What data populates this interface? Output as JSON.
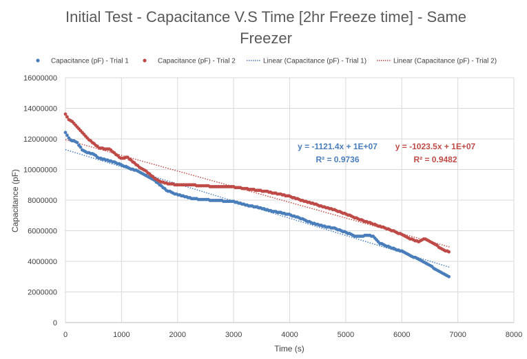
{
  "chart_data": {
    "type": "scatter",
    "title_line1": "Initial Test - Capacitance V.S Time [2hr Freeze time] - Same",
    "title_line2": "Freezer",
    "xlabel": "Time (s)",
    "ylabel": "Capacitance (pF)",
    "xlim": [
      0,
      8000
    ],
    "ylim": [
      0,
      16000000
    ],
    "x_ticks": [
      "0",
      "1000",
      "2000",
      "3000",
      "4000",
      "5000",
      "6000",
      "7000",
      "8000"
    ],
    "y_ticks": [
      "0",
      "2000000",
      "4000000",
      "6000000",
      "8000000",
      "10000000",
      "12000000",
      "14000000",
      "16000000"
    ],
    "grid": true,
    "legend_position": "top",
    "legend": [
      {
        "label": "Capacitance (pF) - Trial 1",
        "kind": "marker",
        "color": "#4A7EBB"
      },
      {
        "label": "Capacitance (pF) - Trial 2",
        "kind": "marker",
        "color": "#BE4B48"
      },
      {
        "label": "Linear (Capacitance (pF) - Trial 1)",
        "kind": "dotted",
        "color": "#4A7EBB"
      },
      {
        "label": "Linear (Capacitance (pF) - Trial 2)",
        "kind": "dotted",
        "color": "#BE4B48"
      }
    ],
    "series": [
      {
        "name": "Capacitance (pF) - Trial 1",
        "color": "#4A7EBB",
        "x_start": 0,
        "x_end": 6850,
        "keypoints": [
          [
            0,
            12400000
          ],
          [
            50,
            12100000
          ],
          [
            100,
            11900000
          ],
          [
            200,
            11800000
          ],
          [
            300,
            11300000
          ],
          [
            400,
            11100000
          ],
          [
            500,
            11000000
          ],
          [
            600,
            10750000
          ],
          [
            750,
            10600000
          ],
          [
            900,
            10450000
          ],
          [
            1000,
            10300000
          ],
          [
            1100,
            10150000
          ],
          [
            1200,
            10000000
          ],
          [
            1300,
            9900000
          ],
          [
            1400,
            9700000
          ],
          [
            1500,
            9500000
          ],
          [
            1600,
            9250000
          ],
          [
            1700,
            8950000
          ],
          [
            1800,
            8650000
          ],
          [
            1900,
            8500000
          ],
          [
            2000,
            8350000
          ],
          [
            2200,
            8150000
          ],
          [
            2400,
            8050000
          ],
          [
            2600,
            8000000
          ],
          [
            2800,
            7950000
          ],
          [
            3000,
            7900000
          ],
          [
            3200,
            7700000
          ],
          [
            3400,
            7550000
          ],
          [
            3600,
            7350000
          ],
          [
            3800,
            7200000
          ],
          [
            4000,
            7050000
          ],
          [
            4200,
            6800000
          ],
          [
            4400,
            6500000
          ],
          [
            4600,
            6300000
          ],
          [
            4800,
            6150000
          ],
          [
            5000,
            5900000
          ],
          [
            5200,
            5600000
          ],
          [
            5400,
            5700000
          ],
          [
            5500,
            5600000
          ],
          [
            5600,
            5200000
          ],
          [
            5800,
            4900000
          ],
          [
            6000,
            4650000
          ],
          [
            6200,
            4300000
          ],
          [
            6400,
            3950000
          ],
          [
            6600,
            3500000
          ],
          [
            6750,
            3150000
          ],
          [
            6850,
            3000000
          ]
        ],
        "trendline": {
          "slope": -1121.4,
          "intercept": 11300000,
          "x_range": [
            0,
            6850
          ],
          "equation": "y = -1121.4x + 1E+07",
          "r2": "R² = 0.9736"
        }
      },
      {
        "name": "Capacitance (pF) - Trial 2",
        "color": "#BE4B48",
        "x_start": 0,
        "x_end": 6850,
        "keypoints": [
          [
            0,
            13600000
          ],
          [
            50,
            13300000
          ],
          [
            100,
            13200000
          ],
          [
            200,
            12800000
          ],
          [
            300,
            12400000
          ],
          [
            400,
            12000000
          ],
          [
            500,
            11700000
          ],
          [
            600,
            11400000
          ],
          [
            800,
            11300000
          ],
          [
            900,
            11000000
          ],
          [
            1000,
            10700000
          ],
          [
            1100,
            10800000
          ],
          [
            1200,
            10500000
          ],
          [
            1300,
            10200000
          ],
          [
            1400,
            10000000
          ],
          [
            1500,
            9700000
          ],
          [
            1600,
            9400000
          ],
          [
            1700,
            9200000
          ],
          [
            1800,
            9100000
          ],
          [
            1900,
            9050000
          ],
          [
            2000,
            9000000
          ],
          [
            2200,
            9000000
          ],
          [
            2400,
            8950000
          ],
          [
            2600,
            8900000
          ],
          [
            2800,
            8850000
          ],
          [
            3000,
            8850000
          ],
          [
            3200,
            8750000
          ],
          [
            3400,
            8650000
          ],
          [
            3600,
            8550000
          ],
          [
            3800,
            8400000
          ],
          [
            4000,
            8250000
          ],
          [
            4200,
            8000000
          ],
          [
            4400,
            7800000
          ],
          [
            4600,
            7550000
          ],
          [
            4800,
            7350000
          ],
          [
            5000,
            7100000
          ],
          [
            5200,
            6800000
          ],
          [
            5400,
            6550000
          ],
          [
            5600,
            6300000
          ],
          [
            5800,
            6050000
          ],
          [
            6000,
            5750000
          ],
          [
            6200,
            5400000
          ],
          [
            6300,
            5300000
          ],
          [
            6400,
            5500000
          ],
          [
            6500,
            5300000
          ],
          [
            6600,
            5100000
          ],
          [
            6700,
            4800000
          ],
          [
            6850,
            4600000
          ]
        ],
        "trendline": {
          "slope": -1023.5,
          "intercept": 11950000,
          "x_range": [
            0,
            6850
          ],
          "equation": "y = -1023.5x + 1E+07",
          "r2": "R² = 0.9482"
        }
      }
    ]
  }
}
